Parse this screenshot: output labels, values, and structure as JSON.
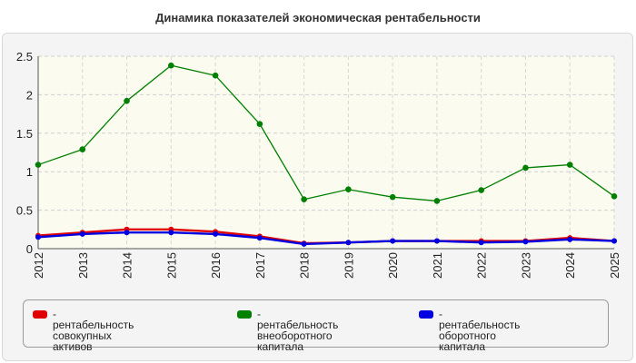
{
  "chart_data": {
    "type": "line",
    "title": "Динамика показателей экономическая рентабельности",
    "xlabel": "",
    "ylabel": "",
    "categories": [
      "2012",
      "2013",
      "2014",
      "2015",
      "2016",
      "2017",
      "2018",
      "2019",
      "2020",
      "2021",
      "2022",
      "2023",
      "2024",
      "2025"
    ],
    "ylim": [
      0,
      2.5
    ],
    "yticks": [
      "0",
      "0.5",
      "1",
      "1.5",
      "2",
      "2.5"
    ],
    "grid": true,
    "legend": "bottom",
    "series": [
      {
        "name": "- рентабельность совокупных активов",
        "color": "#e00000",
        "values": [
          0.17,
          0.21,
          0.25,
          0.25,
          0.22,
          0.16,
          0.07,
          0.08,
          0.1,
          0.1,
          0.1,
          0.1,
          0.14,
          0.1
        ]
      },
      {
        "name": "- рентабельность внеоборотного капитала",
        "color": "#008000",
        "values": [
          1.09,
          1.29,
          1.92,
          2.38,
          2.25,
          1.62,
          0.64,
          0.77,
          0.67,
          0.62,
          0.76,
          1.05,
          1.09,
          0.68
        ]
      },
      {
        "name": "- рентабельность оборотного капитала",
        "color": "#0000e0",
        "values": [
          0.15,
          0.19,
          0.21,
          0.21,
          0.19,
          0.14,
          0.06,
          0.08,
          0.1,
          0.1,
          0.08,
          0.09,
          0.12,
          0.1
        ]
      }
    ]
  }
}
